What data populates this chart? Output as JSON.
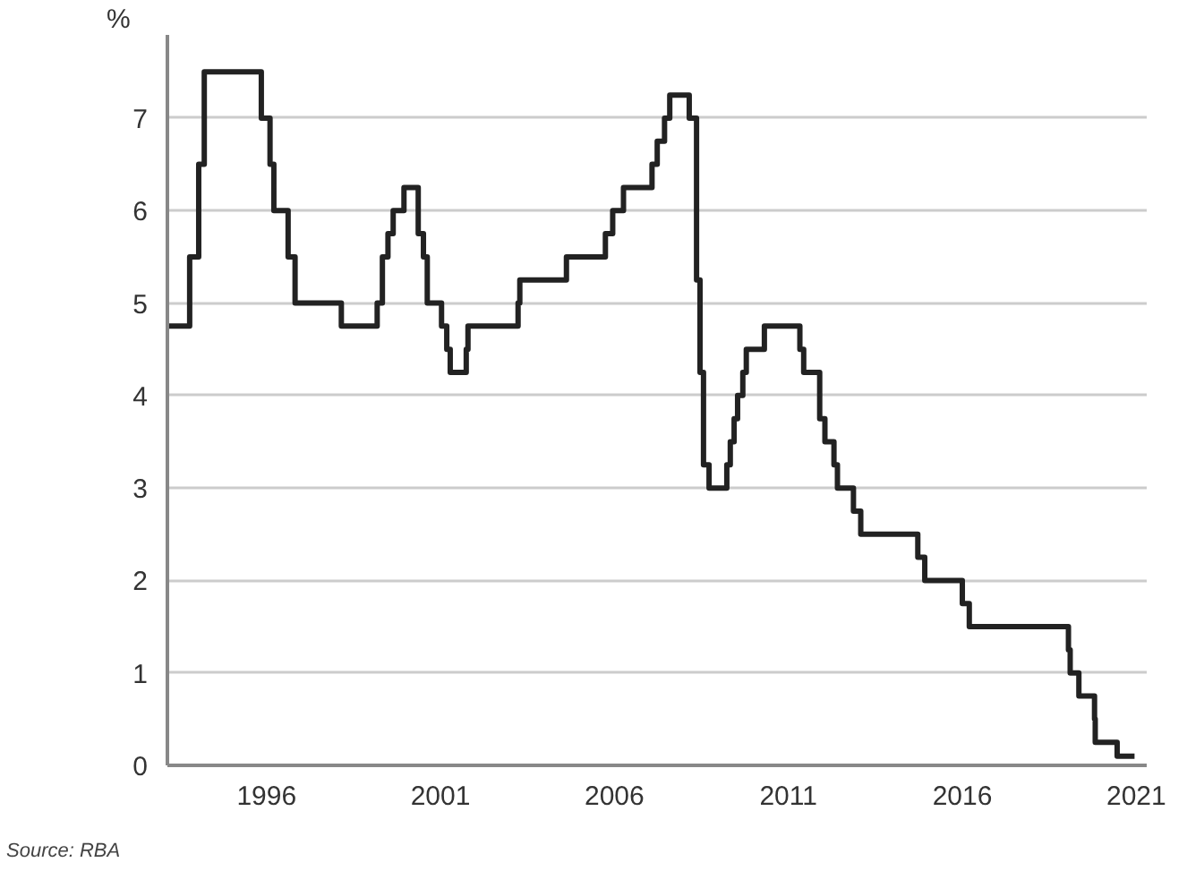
{
  "chart_data": {
    "type": "step",
    "ylabel": "%",
    "x": [
      1993.18,
      1993.79,
      1994.05,
      1994.21,
      1995.85,
      1996.1,
      1996.21,
      1996.62,
      1996.82,
      1998.15,
      1999.18,
      1999.33,
      1999.49,
      1999.64,
      1999.95,
      2000.36,
      2000.51,
      2000.62,
      2001.03,
      2001.18,
      2001.28,
      2001.74,
      2001.79,
      2003.23,
      2003.28,
      2004.62,
      2005.74,
      2005.95,
      2006.26,
      2007.08,
      2007.23,
      2007.44,
      2007.59,
      2008.15,
      2008.36,
      2008.46,
      2008.56,
      2008.72,
      2009.23,
      2009.33,
      2009.44,
      2009.54,
      2009.69,
      2009.79,
      2010.31,
      2011.33,
      2011.44,
      2011.9,
      2012.05,
      2012.31,
      2012.41,
      2012.87,
      2013.08,
      2014.72,
      2014.92,
      2016.0,
      2016.2,
      2019.05,
      2019.1,
      2019.35,
      2019.8,
      2019.82,
      2020.45,
      2020.95
    ],
    "series": [
      {
        "color": "#222222",
        "values": [
          4.75,
          5.5,
          6.5,
          7.5,
          7.0,
          6.5,
          6.0,
          5.5,
          5.0,
          4.75,
          5.0,
          5.5,
          5.75,
          6.0,
          6.25,
          5.75,
          5.5,
          5.0,
          4.75,
          4.5,
          4.25,
          4.5,
          4.75,
          5.0,
          5.25,
          5.5,
          5.75,
          6.0,
          6.25,
          6.5,
          6.75,
          7.0,
          7.25,
          7.0,
          5.25,
          4.25,
          3.25,
          3.0,
          3.25,
          3.5,
          3.75,
          4.0,
          4.25,
          4.5,
          4.75,
          4.5,
          4.25,
          3.75,
          3.5,
          3.25,
          3.0,
          2.75,
          2.5,
          2.25,
          2.0,
          1.75,
          1.5,
          1.25,
          1.0,
          0.75,
          0.5,
          0.25,
          0.1,
          0.1
        ]
      }
    ],
    "xlim": [
      1993.15,
      2021.3
    ],
    "xticks": [
      1996,
      2001,
      2006,
      2011,
      2016,
      2021
    ],
    "ylim": [
      0,
      7.9
    ],
    "yticks": [
      0,
      1,
      2,
      3,
      4,
      5,
      6,
      7
    ],
    "grid": "y",
    "line_style": "solid",
    "annotations": [
      "Source: RBA"
    ]
  }
}
